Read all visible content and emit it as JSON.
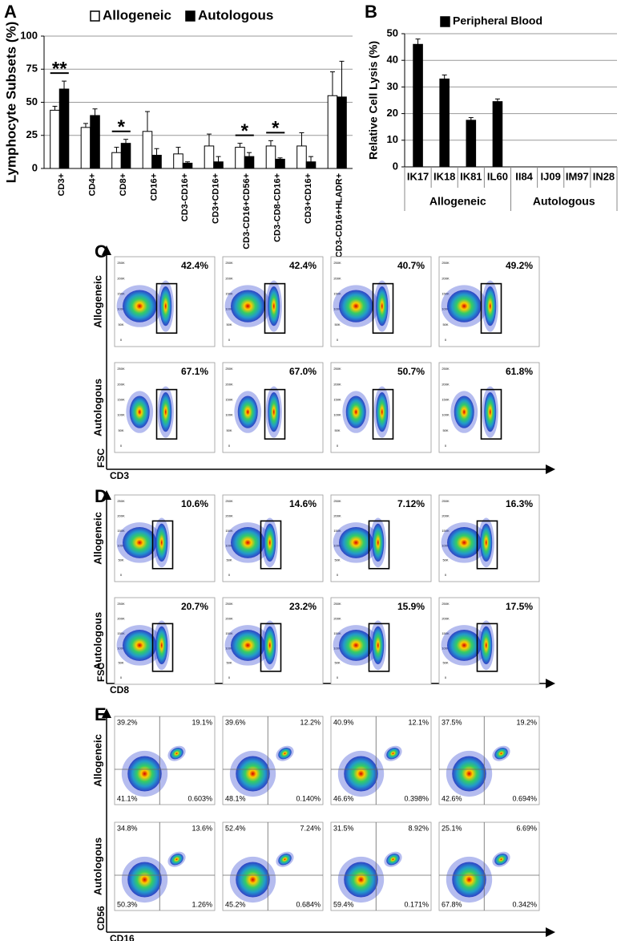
{
  "chart_data": [
    {
      "type": "bar",
      "panel": "A",
      "ylabel": "Lymphocyte Subsets (%)",
      "categories": [
        "CD3+",
        "CD4+",
        "CD8+",
        "CD16+",
        "CD3-CD16+",
        "CD3+CD16+",
        "CD3-CD16+CD56+",
        "CD3-CD8-CD16+",
        "CD3+CD16+",
        "CD3-CD16+HLADR+"
      ],
      "series": [
        {
          "name": "Allogeneic",
          "color": "#ffffff",
          "values": [
            44,
            31,
            12,
            28,
            11,
            17,
            16,
            17,
            17,
            55
          ],
          "errors": [
            3,
            3,
            4,
            15,
            5,
            9,
            3,
            4,
            10,
            18
          ]
        },
        {
          "name": "Autologous",
          "color": "#000000",
          "values": [
            60,
            40,
            19,
            10,
            4,
            5,
            9,
            7,
            5,
            54
          ],
          "errors": [
            6,
            5,
            3,
            5,
            1,
            4,
            3,
            1,
            4,
            27
          ]
        }
      ],
      "significance": [
        "**",
        null,
        "*",
        null,
        null,
        null,
        "*",
        "*",
        null,
        null
      ],
      "ylim": [
        0,
        100
      ],
      "yticks": [
        0,
        25,
        50,
        75,
        100
      ],
      "grid": true
    },
    {
      "type": "bar",
      "panel": "B",
      "ylabel": "Relative Cell Lysis (%)",
      "categories": [
        "IK17",
        "IK18",
        "IK81",
        "IL60",
        "II84",
        "IJ09",
        "IM97",
        "IN28"
      ],
      "groups": [
        "Allogeneic",
        "Autologous"
      ],
      "series": [
        {
          "name": "Peripheral Blood",
          "color": "#000000",
          "values": [
            46,
            33,
            17.5,
            24.5,
            0,
            0,
            0,
            0
          ],
          "errors": [
            2,
            1.5,
            1,
            1,
            null,
            null,
            null,
            null
          ]
        }
      ],
      "ylim": [
        0,
        50
      ],
      "yticks": [
        0,
        10,
        20,
        30,
        40,
        50
      ],
      "grid": true
    }
  ],
  "flow_panels": [
    {
      "label": "C",
      "row_labels": [
        "Allogeneic",
        "Autologous"
      ],
      "x_label": "CD3",
      "y_label": "FSC",
      "y_ticks": [
        "250K",
        "200K",
        "150K",
        "100K",
        "50K",
        "0"
      ],
      "gates": [
        [
          "42.4%",
          "42.4%",
          "40.7%",
          "49.2%"
        ],
        [
          "67.1%",
          "67.0%",
          "50.7%",
          "61.8%"
        ]
      ]
    },
    {
      "label": "D",
      "row_labels": [
        "Allogeneic",
        "Autologous"
      ],
      "x_label": "CD8",
      "y_label": "FSC",
      "y_ticks": [
        "250K",
        "200K",
        "150K",
        "100K",
        "50K",
        "0"
      ],
      "gates": [
        [
          "10.6%",
          "14.6%",
          "7.12%",
          "16.3%"
        ],
        [
          "20.7%",
          "23.2%",
          "15.9%",
          "17.5%"
        ]
      ]
    },
    {
      "label": "E",
      "row_labels": [
        "Allogeneic",
        "Autologous"
      ],
      "x_label": "CD16",
      "y_label": "CD56",
      "quadrants": [
        [
          [
            "39.2%",
            "19.1%",
            "41.1%",
            "0.603%"
          ],
          [
            "39.6%",
            "12.2%",
            "48.1%",
            "0.140%"
          ],
          [
            "40.9%",
            "12.1%",
            "46.6%",
            "0.398%"
          ],
          [
            "37.5%",
            "19.2%",
            "42.6%",
            "0.694%"
          ]
        ],
        [
          [
            "34.8%",
            "13.6%",
            "50.3%",
            "1.26%"
          ],
          [
            "52.4%",
            "7.24%",
            "45.2%",
            "0.684%"
          ],
          [
            "31.5%",
            "8.92%",
            "59.4%",
            "0.171%"
          ],
          [
            "25.1%",
            "6.69%",
            "67.8%",
            "0.342%"
          ]
        ]
      ]
    }
  ]
}
